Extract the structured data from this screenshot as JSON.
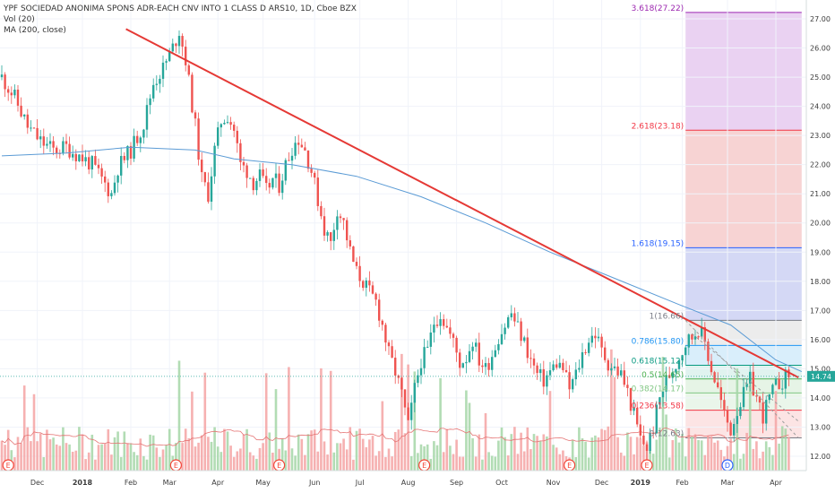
{
  "legend": {
    "title": "YPF SOCIEDAD ANONIMA SPONS ADR-EACH CNV INTO 1 CLASS D ARS10, 1D, Cboe BZX",
    "vol": "Vol (20)",
    "ma": "MA (200, close)"
  },
  "chart_data": {
    "type": "candlestick",
    "ylim": [
      11.6,
      27.4
    ],
    "price_axis": [
      "12.00",
      "13.00",
      "14.00",
      "15.00",
      "16.00",
      "17.00",
      "18.00",
      "19.00",
      "20.00",
      "21.00",
      "22.00",
      "23.00",
      "24.00",
      "25.00",
      "26.00",
      "27.00"
    ],
    "x_labels": [
      "Dec",
      "2018",
      "Feb",
      "Mar",
      "Apr",
      "May",
      "Jun",
      "Jul",
      "Aug",
      "Sep",
      "Oct",
      "Nov",
      "Dec",
      "2019",
      "Feb",
      "Mar",
      "Apr"
    ],
    "last_price": "14.74",
    "close_path": [
      [
        0,
        25.0
      ],
      [
        4,
        24.3
      ],
      [
        8,
        23.3
      ],
      [
        12,
        22.8
      ],
      [
        16,
        22.5
      ],
      [
        20,
        22.6
      ],
      [
        24,
        22.3
      ],
      [
        28,
        22.0
      ],
      [
        31,
        21.5
      ],
      [
        34,
        21.0
      ],
      [
        36,
        21.9
      ],
      [
        40,
        22.5
      ],
      [
        44,
        23.4
      ],
      [
        47,
        24.8
      ],
      [
        50,
        25.3
      ],
      [
        53,
        26.0
      ],
      [
        55,
        26.6
      ],
      [
        57,
        25.6
      ],
      [
        60,
        23.3
      ],
      [
        62,
        21.5
      ],
      [
        64,
        21.0
      ],
      [
        66,
        22.5
      ],
      [
        68,
        23.5
      ],
      [
        70,
        23.7
      ],
      [
        72,
        23.2
      ],
      [
        74,
        22.0
      ],
      [
        76,
        21.8
      ],
      [
        78,
        21.4
      ],
      [
        80,
        21.6
      ],
      [
        82,
        21.1
      ],
      [
        84,
        21.5
      ],
      [
        86,
        21.3
      ],
      [
        88,
        22.0
      ],
      [
        90,
        22.6
      ],
      [
        92,
        22.9
      ],
      [
        94,
        22.5
      ],
      [
        96,
        21.8
      ],
      [
        98,
        20.8
      ],
      [
        100,
        19.8
      ],
      [
        102,
        19.3
      ],
      [
        104,
        20.5
      ],
      [
        106,
        20.0
      ],
      [
        108,
        19.0
      ],
      [
        110,
        18.3
      ],
      [
        112,
        18.0
      ],
      [
        114,
        17.6
      ],
      [
        116,
        17.3
      ],
      [
        118,
        16.5
      ],
      [
        120,
        15.5
      ],
      [
        122,
        14.9
      ],
      [
        124,
        14.1
      ],
      [
        126,
        13.0
      ],
      [
        128,
        14.3
      ],
      [
        130,
        15.3
      ],
      [
        132,
        15.6
      ],
      [
        134,
        16.6
      ],
      [
        136,
        16.9
      ],
      [
        138,
        16.4
      ],
      [
        140,
        15.9
      ],
      [
        142,
        15.2
      ],
      [
        144,
        15.4
      ],
      [
        146,
        16.0
      ],
      [
        148,
        15.3
      ],
      [
        150,
        15.0
      ],
      [
        152,
        15.5
      ],
      [
        154,
        16.1
      ],
      [
        156,
        16.5
      ],
      [
        158,
        16.9
      ],
      [
        160,
        16.4
      ],
      [
        162,
        15.9
      ],
      [
        164,
        15.3
      ],
      [
        166,
        14.8
      ],
      [
        168,
        14.6
      ],
      [
        170,
        14.9
      ],
      [
        172,
        15.2
      ],
      [
        174,
        15.0
      ],
      [
        176,
        14.3
      ],
      [
        178,
        14.8
      ],
      [
        180,
        15.5
      ],
      [
        182,
        16.0
      ],
      [
        184,
        16.2
      ],
      [
        186,
        15.6
      ],
      [
        188,
        15.2
      ],
      [
        190,
        15.0
      ],
      [
        192,
        14.8
      ],
      [
        194,
        14.2
      ],
      [
        196,
        13.4
      ],
      [
        198,
        12.6
      ],
      [
        200,
        12.3
      ],
      [
        202,
        13.0
      ],
      [
        204,
        14.0
      ],
      [
        206,
        14.6
      ],
      [
        208,
        15.0
      ],
      [
        210,
        15.4
      ],
      [
        212,
        15.9
      ],
      [
        214,
        16.1
      ],
      [
        216,
        16.4
      ],
      [
        218,
        15.9
      ],
      [
        220,
        15.0
      ],
      [
        222,
        14.3
      ],
      [
        224,
        13.4
      ],
      [
        226,
        12.9
      ],
      [
        228,
        13.6
      ],
      [
        230,
        14.1
      ],
      [
        232,
        14.6
      ],
      [
        234,
        14.0
      ],
      [
        236,
        13.4
      ],
      [
        238,
        14.0
      ],
      [
        240,
        14.4
      ],
      [
        242,
        14.6
      ],
      [
        244,
        14.8
      ]
    ],
    "ma_path": [
      [
        0,
        22.3
      ],
      [
        20,
        22.4
      ],
      [
        40,
        22.6
      ],
      [
        60,
        22.5
      ],
      [
        72,
        22.2
      ],
      [
        90,
        22.0
      ],
      [
        110,
        21.6
      ],
      [
        130,
        20.9
      ],
      [
        150,
        20.0
      ],
      [
        170,
        19.0
      ],
      [
        190,
        18.1
      ],
      [
        210,
        17.2
      ],
      [
        226,
        16.5
      ],
      [
        240,
        15.3
      ],
      [
        248,
        14.9
      ]
    ],
    "trendline": {
      "start": [
        38.5,
        26.65
      ],
      "end": [
        247,
        14.7
      ]
    },
    "fib": {
      "start_x": 212,
      "end_x": 248,
      "levels": [
        {
          "ratio": "0",
          "value": 12.63,
          "label": "0(12.63)",
          "color": "#787b86",
          "fill": "#ffffff"
        },
        {
          "ratio": "0.236",
          "value": 13.58,
          "label": "0.236(13.58)",
          "color": "#f23645",
          "fill": "#fce4e4"
        },
        {
          "ratio": "0.382",
          "value": 14.17,
          "label": "0.382(14.17)",
          "color": "#81c784",
          "fill": "#eaf6ea"
        },
        {
          "ratio": "0.5",
          "value": 14.65,
          "label": "0.5(14.65)",
          "color": "#4caf50",
          "fill": "#e6f4e6"
        },
        {
          "ratio": "0.618",
          "value": 15.12,
          "label": "0.618(15.12)",
          "color": "#089981",
          "fill": "#e0f3ef"
        },
        {
          "ratio": "0.786",
          "value": 15.8,
          "label": "0.786(15.80)",
          "color": "#2196f3",
          "fill": "#d9eefb"
        },
        {
          "ratio": "1",
          "value": 16.66,
          "label": "1(16.66)",
          "color": "#787b86",
          "fill": "#ececec"
        },
        {
          "ratio": "1.618",
          "value": 19.15,
          "label": "1.618(19.15)",
          "color": "#2962ff",
          "fill": "#d4d8f5"
        },
        {
          "ratio": "2.618",
          "value": 23.18,
          "label": "2.618(23.18)",
          "color": "#f23645",
          "fill": "#f7d3d3"
        },
        {
          "ratio": "3.618",
          "value": 27.22,
          "label": "3.618(27.22)",
          "color": "#9c27b0",
          "fill": "#ead2f2"
        }
      ]
    },
    "events": [
      {
        "label": "E",
        "bar": 2
      },
      {
        "label": "E",
        "bar": 54
      },
      {
        "label": "E",
        "bar": 86
      },
      {
        "label": "E",
        "bar": 131
      },
      {
        "label": "E",
        "bar": 176
      },
      {
        "label": "E",
        "bar": 200
      },
      {
        "label": "D",
        "bar": 225
      }
    ]
  },
  "colors": {
    "up": "#26a69a",
    "down": "#ef5350",
    "ma": "#5b9bd5",
    "trend": "#e53935",
    "last": "#26a69a"
  }
}
